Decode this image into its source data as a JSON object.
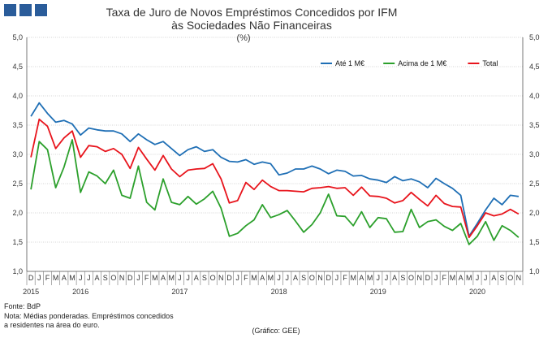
{
  "chart_data": {
    "type": "line",
    "title": [
      "Taxa de Juro de Novos Empréstimos Concedidos por IFM",
      "às Sociedades Não Financeiras"
    ],
    "subtitle": "(%)",
    "ylim": [
      1.0,
      5.0
    ],
    "yticks": [
      "1,0",
      "1,5",
      "2,0",
      "2,5",
      "3,0",
      "3,5",
      "4,0",
      "4,5",
      "5,0"
    ],
    "grid": true,
    "legend_position": "top-right",
    "month_labels": [
      "D",
      "J",
      "F",
      "M",
      "A",
      "M",
      "J",
      "J",
      "A",
      "S",
      "O",
      "N",
      "D",
      "J",
      "F",
      "M",
      "A",
      "M",
      "J",
      "J",
      "A",
      "S",
      "O",
      "N",
      "D",
      "J",
      "F",
      "M",
      "A",
      "M",
      "J",
      "J",
      "A",
      "S",
      "O",
      "N",
      "D",
      "J",
      "F",
      "M",
      "A",
      "M",
      "J",
      "J",
      "A",
      "S",
      "O",
      "N",
      "D",
      "J",
      "F",
      "M",
      "A",
      "M",
      "J",
      "J",
      "A",
      "S",
      "O",
      "N"
    ],
    "year_labels": [
      {
        "label": "2015",
        "index": 0
      },
      {
        "label": "2016",
        "index": 6
      },
      {
        "label": "2017",
        "index": 18
      },
      {
        "label": "2018",
        "index": 30
      },
      {
        "label": "2019",
        "index": 42
      },
      {
        "label": "2020",
        "index": 54
      }
    ],
    "series": [
      {
        "name": "Até 1 M€",
        "color": "#1f6fb5",
        "values": [
          3.65,
          3.88,
          3.7,
          3.55,
          3.58,
          3.52,
          3.33,
          3.45,
          3.42,
          3.4,
          3.4,
          3.35,
          3.22,
          3.35,
          3.25,
          3.17,
          3.22,
          3.1,
          2.98,
          3.08,
          3.13,
          3.05,
          3.08,
          2.95,
          2.88,
          2.87,
          2.91,
          2.83,
          2.87,
          2.84,
          2.65,
          2.68,
          2.75,
          2.75,
          2.8,
          2.75,
          2.67,
          2.73,
          2.71,
          2.63,
          2.64,
          2.58,
          2.56,
          2.52,
          2.62,
          2.55,
          2.58,
          2.53,
          2.43,
          2.59,
          2.5,
          2.42,
          2.3,
          1.6,
          1.82,
          2.05,
          2.25,
          2.14,
          2.3,
          2.28
        ]
      },
      {
        "name": "Acima de 1 M€",
        "color": "#2ca02c",
        "values": [
          2.4,
          3.22,
          3.08,
          2.43,
          2.78,
          3.25,
          2.35,
          2.7,
          2.63,
          2.5,
          2.73,
          2.3,
          2.25,
          2.8,
          2.18,
          2.05,
          2.58,
          2.18,
          2.14,
          2.28,
          2.15,
          2.24,
          2.37,
          2.08,
          1.6,
          1.65,
          1.78,
          1.88,
          2.14,
          1.92,
          1.97,
          2.04,
          1.86,
          1.67,
          1.8,
          2.0,
          2.32,
          1.95,
          1.94,
          1.78,
          2.02,
          1.75,
          1.92,
          1.9,
          1.67,
          1.68,
          2.06,
          1.75,
          1.85,
          1.88,
          1.77,
          1.7,
          1.82,
          1.46,
          1.6,
          1.85,
          1.53,
          1.78,
          1.7,
          1.58
        ]
      },
      {
        "name": "Total",
        "color": "#e8141c",
        "values": [
          2.95,
          3.6,
          3.48,
          3.1,
          3.28,
          3.4,
          2.95,
          3.15,
          3.13,
          3.05,
          3.1,
          3.0,
          2.76,
          3.12,
          2.92,
          2.73,
          2.98,
          2.75,
          2.62,
          2.73,
          2.75,
          2.76,
          2.84,
          2.58,
          2.17,
          2.21,
          2.52,
          2.4,
          2.56,
          2.45,
          2.38,
          2.38,
          2.37,
          2.36,
          2.42,
          2.43,
          2.45,
          2.42,
          2.43,
          2.3,
          2.44,
          2.29,
          2.28,
          2.25,
          2.17,
          2.21,
          2.35,
          2.23,
          2.12,
          2.3,
          2.16,
          2.11,
          2.1,
          1.58,
          1.78,
          2.0,
          1.95,
          1.98,
          2.06,
          1.98
        ]
      }
    ]
  },
  "notes": {
    "source": "Fonte: BdP",
    "note_line1": "Nota: Médias ponderadas.  Empréstimos concedidos",
    "note_line2": "a residentes na área do euro.",
    "chart_credit": "(Gráfico: GEE)"
  }
}
